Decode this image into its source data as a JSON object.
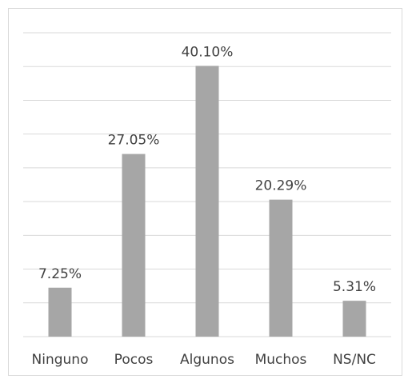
{
  "chart_data": {
    "type": "bar",
    "categories": [
      "Ninguno",
      "Pocos",
      "Algunos",
      "Muchos",
      "NS/NC"
    ],
    "values": [
      7.25,
      27.05,
      40.1,
      20.29,
      5.31
    ],
    "data_labels": [
      "7.25%",
      "27.05%",
      "40.10%",
      "20.29%",
      "5.31%"
    ],
    "ylim": [
      0,
      45
    ],
    "gridline_step": 5,
    "grid": true,
    "legend": "none",
    "bar_color": "#a6a6a6",
    "grid_color": "#d9d9d9"
  }
}
